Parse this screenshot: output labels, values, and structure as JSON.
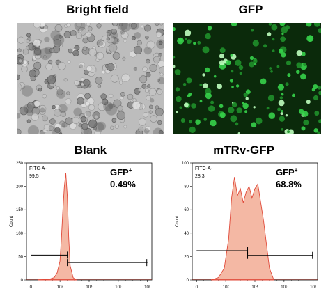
{
  "panels": {
    "bright_field": {
      "title": "Bright field"
    },
    "gfp": {
      "title": "GFP"
    },
    "blank": {
      "title": "Blank"
    },
    "mtrv": {
      "title": "mTRv-GFP"
    }
  },
  "colors": {
    "histogram_fill": "#f4b8a4",
    "histogram_line": "#e04a3a",
    "gfp_bg": "#0b2a0b",
    "gfp_cell": "#36d24a",
    "brightfield_bg": "#bdbdbd"
  },
  "chart_data": [
    {
      "type": "area",
      "title": "Blank",
      "xlabel": "",
      "ylabel": "Count",
      "x_scale": "log",
      "x_tick_labels": [
        "0",
        "10²",
        "10⁴",
        "10⁶",
        "10⁸"
      ],
      "y_tick_labels": [
        "0",
        "50",
        "100",
        "150",
        "200",
        "250"
      ],
      "ylim": [
        0,
        250
      ],
      "gate_label": "FITC-A-",
      "gate_value": "99.5",
      "annotation": {
        "label": "GFP",
        "superscript": "+",
        "value": "0.49%"
      },
      "x": [
        0.5,
        1.0,
        1.3,
        1.6,
        1.8,
        2.0,
        2.1,
        2.2,
        2.3,
        2.4,
        2.5,
        2.6,
        2.7,
        2.9,
        3.1
      ],
      "values": [
        0,
        1,
        2,
        5,
        15,
        40,
        90,
        150,
        200,
        228,
        180,
        90,
        30,
        5,
        0
      ],
      "gate_left": {
        "from": 0,
        "to": 2.5,
        "y": 53
      },
      "gate_right": {
        "from": 2.5,
        "to": 8,
        "y": 37
      }
    },
    {
      "type": "area",
      "title": "mTRv-GFP",
      "xlabel": "",
      "ylabel": "Count",
      "x_scale": "log",
      "x_tick_labels": [
        "0",
        "10²",
        "10⁴",
        "10⁶",
        "10⁸"
      ],
      "y_tick_labels": [
        "0",
        "20",
        "40",
        "60",
        "80",
        "100"
      ],
      "ylim": [
        0,
        100
      ],
      "gate_label": "FITC-A-",
      "gate_value": "28.3",
      "annotation": {
        "label": "GFP",
        "superscript": "+",
        "value": "68.8%"
      },
      "x": [
        1.0,
        1.5,
        1.9,
        2.2,
        2.4,
        2.6,
        2.8,
        3.0,
        3.2,
        3.4,
        3.6,
        3.8,
        4.0,
        4.2,
        4.4,
        4.6,
        4.8,
        5.0,
        5.3
      ],
      "values": [
        0,
        2,
        10,
        35,
        70,
        88,
        72,
        78,
        66,
        75,
        80,
        70,
        78,
        82,
        66,
        50,
        30,
        10,
        0
      ],
      "gate_left": {
        "from": 0,
        "to": 3.5,
        "y": 25
      },
      "gate_right": {
        "from": 3.5,
        "to": 8,
        "y": 21
      }
    }
  ]
}
